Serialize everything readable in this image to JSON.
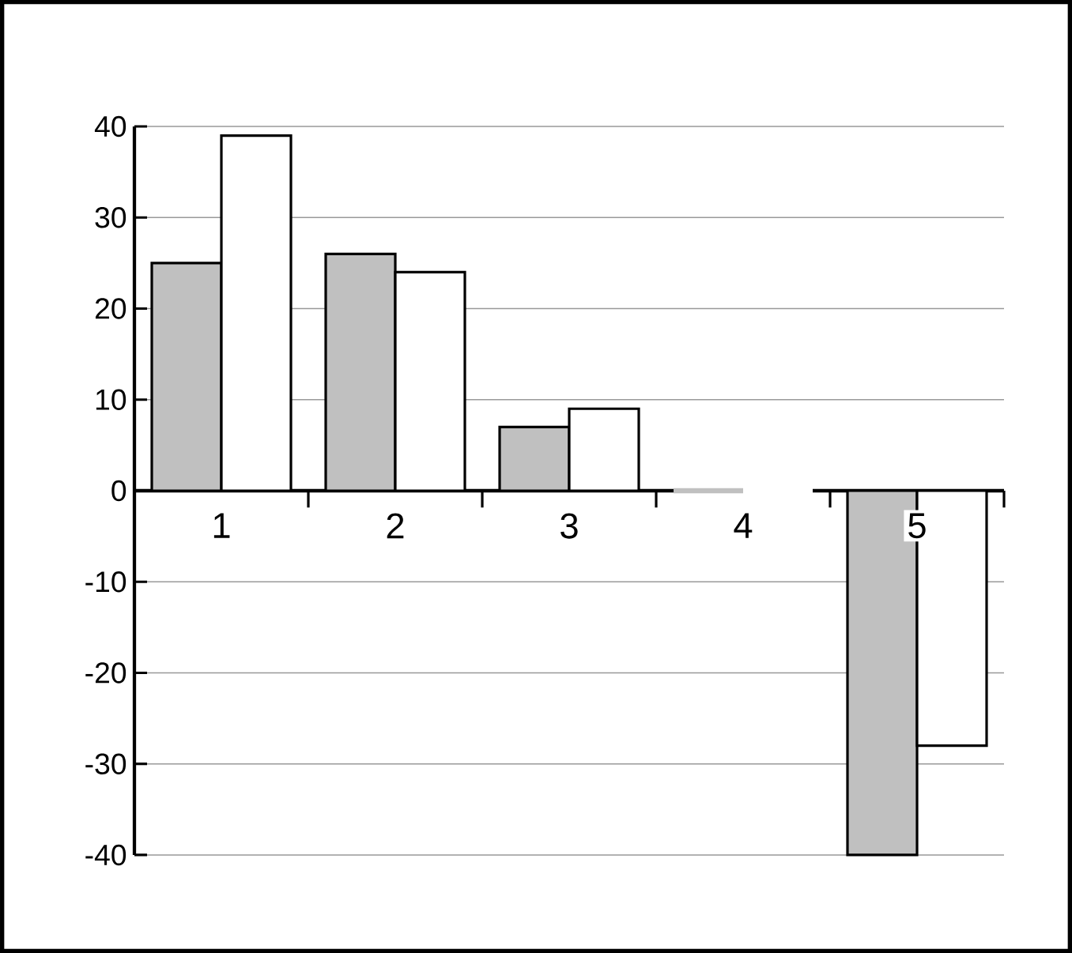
{
  "chart_data": {
    "type": "bar",
    "categories": [
      "1",
      "2",
      "3",
      "4",
      "5"
    ],
    "series": [
      {
        "color": "#c0c0c0",
        "values": [
          25,
          26,
          7,
          0,
          -40
        ]
      },
      {
        "color": "#ffffff",
        "values": [
          39,
          24,
          9,
          0,
          -28
        ]
      }
    ],
    "ylim": [
      -40,
      40
    ],
    "yticks": [
      -40,
      -30,
      -20,
      -10,
      0,
      10,
      20,
      30,
      40
    ],
    "grid": "y"
  }
}
